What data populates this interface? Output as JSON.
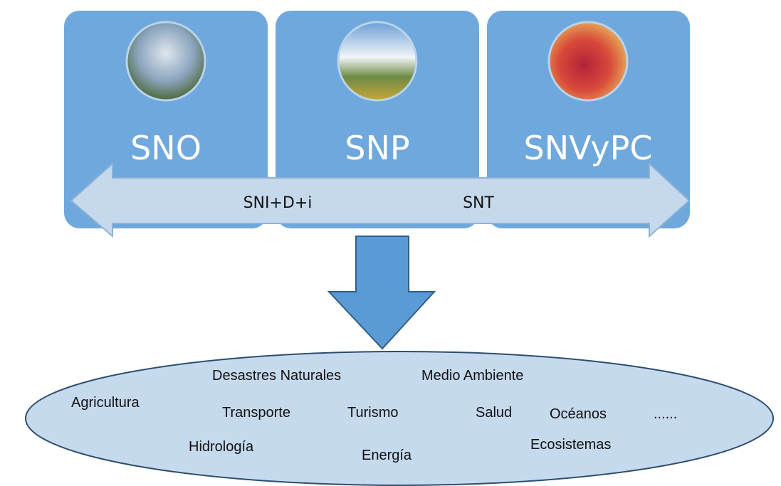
{
  "systems": [
    {
      "label": "SNO"
    },
    {
      "label": "SNP"
    },
    {
      "label": "SNVyPC"
    }
  ],
  "arrow_labels": [
    "SNI+D+i",
    "SNT"
  ],
  "sectors": [
    "Desastres Naturales",
    "Medio Ambiente",
    "Agricultura",
    "Transporte",
    "Turismo",
    "Salud",
    "Océanos",
    "......",
    "Hidrología",
    "Energía",
    "Ecosistemas"
  ]
}
